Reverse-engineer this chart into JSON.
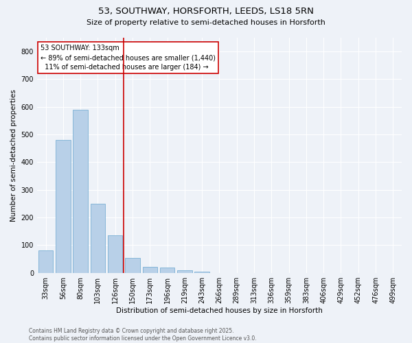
{
  "title_line1": "53, SOUTHWAY, HORSFORTH, LEEDS, LS18 5RN",
  "title_line2": "Size of property relative to semi-detached houses in Horsforth",
  "xlabel": "Distribution of semi-detached houses by size in Horsforth",
  "ylabel": "Number of semi-detached properties",
  "footer_line1": "Contains HM Land Registry data © Crown copyright and database right 2025.",
  "footer_line2": "Contains public sector information licensed under the Open Government Licence v3.0.",
  "bar_labels": [
    "33sqm",
    "56sqm",
    "80sqm",
    "103sqm",
    "126sqm",
    "150sqm",
    "173sqm",
    "196sqm",
    "219sqm",
    "243sqm",
    "266sqm",
    "289sqm",
    "313sqm",
    "336sqm",
    "359sqm",
    "383sqm",
    "406sqm",
    "429sqm",
    "452sqm",
    "476sqm",
    "499sqm"
  ],
  "bar_values": [
    80,
    480,
    590,
    250,
    135,
    55,
    22,
    18,
    10,
    3,
    0,
    0,
    0,
    0,
    0,
    0,
    0,
    0,
    0,
    0,
    0
  ],
  "bar_color": "#b8d0e8",
  "bar_edge_color": "#7aafd4",
  "vertical_line_x": 4.5,
  "vertical_line_color": "#cc0000",
  "annotation_line1": "53 SOUTHWAY: 133sqm",
  "annotation_line2": "← 89% of semi-detached houses are smaller (1,440)",
  "annotation_line3": "  11% of semi-detached houses are larger (184) →",
  "annotation_box_color": "#cc0000",
  "annotation_bg": "#ffffff",
  "ylim": [
    0,
    850
  ],
  "yticks": [
    0,
    100,
    200,
    300,
    400,
    500,
    600,
    700,
    800
  ],
  "bg_color": "#eef2f8",
  "plot_bg_color": "#eef2f8",
  "grid_color": "#ffffff",
  "title1_fontsize": 9.5,
  "title2_fontsize": 8,
  "tick_fontsize": 7,
  "ylabel_fontsize": 7.5,
  "xlabel_fontsize": 7.5,
  "footer_fontsize": 5.5,
  "annot_fontsize": 7
}
